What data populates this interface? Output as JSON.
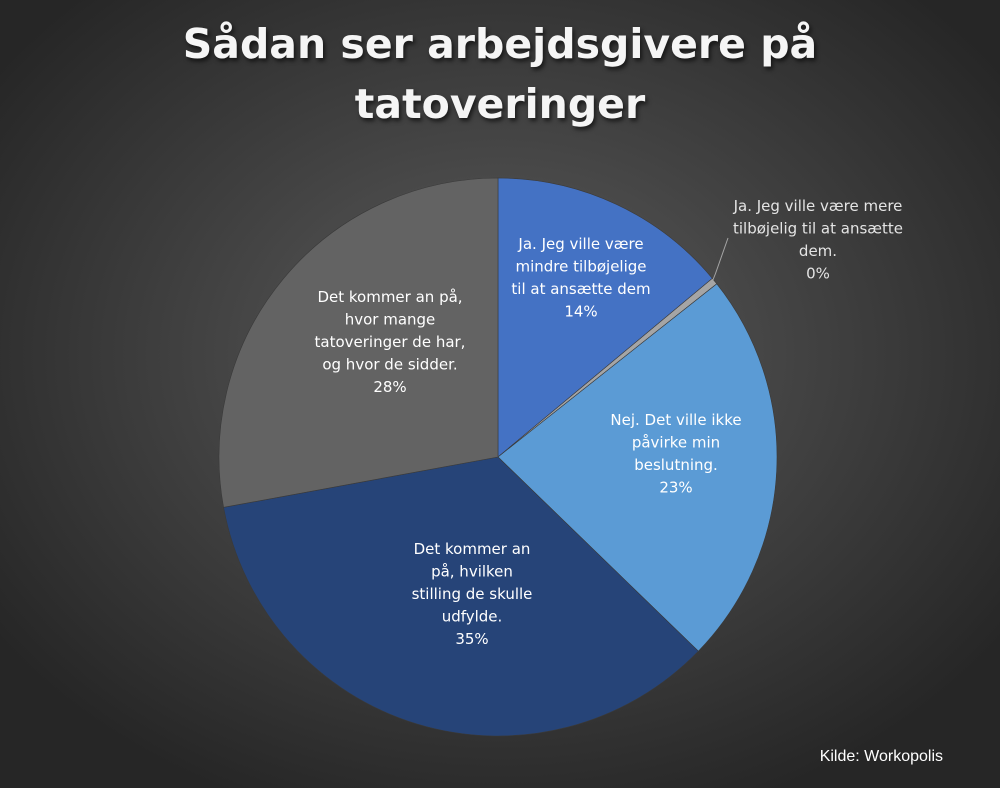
{
  "chart_data": {
    "type": "pie",
    "title": "Sådan ser arbejdsgivere på tatoveringer",
    "title_lines": [
      "Sådan ser arbejdsgivere på",
      "tatoveringer"
    ],
    "source": "Kilde: Workopolis",
    "slices": [
      {
        "label": "Ja. Jeg ville være mindre tilbøjelige til at ansætte dem",
        "label_lines": [
          "Ja. Jeg ville være",
          "mindre tilbøjelige",
          "til at ansætte dem"
        ],
        "value": 14,
        "value_label": "14%",
        "color": "#4472c4",
        "label_position": "inside"
      },
      {
        "label": "Ja. Jeg ville være mere tilbøjelig til at ansætte dem.",
        "label_lines": [
          "Ja. Jeg ville være mere",
          "tilbøjelig til at ansætte",
          "dem."
        ],
        "value": 0.4,
        "value_label": "0%",
        "color": "#a5a5a5",
        "label_position": "outside"
      },
      {
        "label": "Nej. Det ville ikke påvirke min beslutning.",
        "label_lines": [
          "Nej. Det ville ikke",
          "påvirke min",
          "beslutning."
        ],
        "value": 23,
        "value_label": "23%",
        "color": "#5b9bd5",
        "label_position": "inside"
      },
      {
        "label": "Det kommer an på, hvilken stilling de skulle udfylde.",
        "label_lines": [
          "Det kommer an",
          "på, hvilken",
          "stilling de skulle",
          "udfylde."
        ],
        "value": 35,
        "value_label": "35%",
        "color": "#264478",
        "label_position": "inside"
      },
      {
        "label": "Det kommer an på, hvor mange tatoveringer de har, og hvor de sidder.",
        "label_lines": [
          "Det kommer an på,",
          "hvor mange",
          "tatoveringer de har,",
          "og hvor de sidder."
        ],
        "value": 28,
        "value_label": "28%",
        "color": "#636363",
        "label_position": "inside"
      }
    ],
    "start_angle": "12 o'clock",
    "direction": "clockwise",
    "legend": "none"
  }
}
